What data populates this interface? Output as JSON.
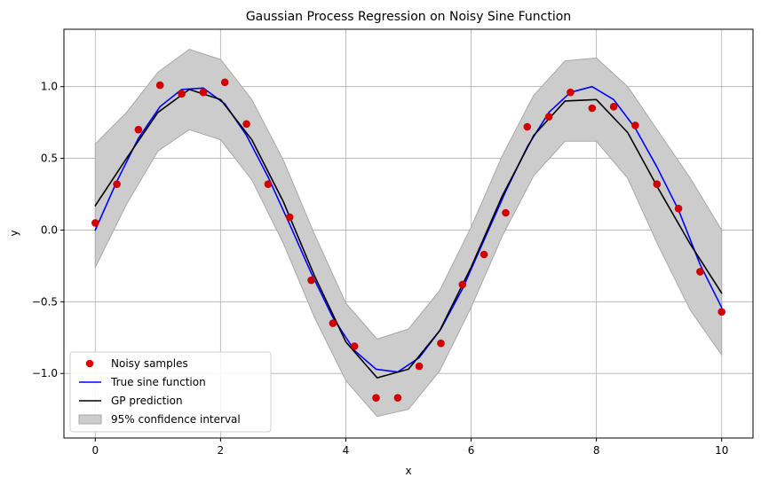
{
  "chart_data": {
    "type": "line",
    "title": "Gaussian Process Regression on Noisy Sine Function",
    "xlabel": "x",
    "ylabel": "y",
    "xlim": [
      -0.5,
      10.5
    ],
    "ylim": [
      -1.45,
      1.4
    ],
    "xticks": [
      0,
      2,
      4,
      6,
      8,
      10
    ],
    "xtick_labels": [
      "0",
      "2",
      "4",
      "6",
      "8",
      "10"
    ],
    "yticks": [
      -1.0,
      -0.5,
      0.0,
      0.5,
      1.0
    ],
    "ytick_labels": [
      "−1.0",
      "−0.5",
      "0.0",
      "0.5",
      "1.0"
    ],
    "grid": true,
    "legend_position": "lower-left",
    "legend": [
      {
        "label": "Noisy samples",
        "kind": "scatter",
        "color": "#e00000"
      },
      {
        "label": "True sine function",
        "kind": "line",
        "color": "#0000ff"
      },
      {
        "label": "GP prediction",
        "kind": "line",
        "color": "#000000"
      },
      {
        "label": "95% confidence interval",
        "kind": "band",
        "color": "#c8c8c8"
      }
    ],
    "noisy_samples": {
      "x": [
        0.0,
        0.345,
        0.69,
        1.034,
        1.379,
        1.724,
        2.069,
        2.414,
        2.759,
        3.103,
        3.448,
        3.793,
        4.138,
        4.483,
        4.828,
        5.172,
        5.517,
        5.862,
        6.207,
        6.552,
        6.897,
        7.241,
        7.586,
        7.931,
        8.276,
        8.621,
        8.966,
        9.31,
        9.655,
        10.0
      ],
      "y": [
        0.05,
        0.32,
        0.7,
        1.01,
        0.95,
        0.96,
        1.03,
        0.74,
        0.32,
        0.09,
        -0.35,
        -0.65,
        -0.81,
        -1.17,
        -1.17,
        -0.95,
        -0.79,
        -0.38,
        -0.17,
        0.12,
        0.72,
        0.79,
        0.96,
        0.85,
        0.86,
        0.73,
        0.32,
        0.15,
        -0.29,
        -0.57
      ]
    },
    "true_sine": {
      "x": [
        0.0,
        0.345,
        0.69,
        1.034,
        1.379,
        1.724,
        2.069,
        2.414,
        2.759,
        3.103,
        3.448,
        3.793,
        4.138,
        4.483,
        4.828,
        5.172,
        5.517,
        5.862,
        6.207,
        6.552,
        6.897,
        7.241,
        7.586,
        7.931,
        8.276,
        8.621,
        8.966,
        9.31,
        9.655,
        10.0
      ],
      "y": [
        0.0,
        0.34,
        0.64,
        0.86,
        0.98,
        0.99,
        0.88,
        0.66,
        0.37,
        0.04,
        -0.3,
        -0.61,
        -0.84,
        -0.97,
        -0.99,
        -0.89,
        -0.69,
        -0.41,
        -0.07,
        0.27,
        0.58,
        0.82,
        0.96,
        1.0,
        0.91,
        0.71,
        0.44,
        0.14,
        -0.24,
        -0.54
      ]
    },
    "gp_prediction": {
      "x": [
        0.0,
        0.5,
        1.0,
        1.5,
        2.0,
        2.5,
        3.0,
        3.5,
        4.0,
        4.5,
        5.0,
        5.5,
        6.0,
        6.5,
        7.0,
        7.5,
        8.0,
        8.5,
        9.0,
        9.5,
        10.0
      ],
      "y": [
        0.17,
        0.5,
        0.82,
        0.98,
        0.91,
        0.63,
        0.2,
        -0.32,
        -0.78,
        -1.03,
        -0.97,
        -0.7,
        -0.26,
        0.24,
        0.66,
        0.9,
        0.91,
        0.68,
        0.28,
        -0.1,
        -0.44
      ]
    },
    "confidence_interval": {
      "x": [
        0.0,
        0.5,
        1.0,
        1.5,
        2.0,
        2.5,
        3.0,
        3.5,
        4.0,
        4.5,
        5.0,
        5.5,
        6.0,
        6.5,
        7.0,
        7.5,
        8.0,
        8.5,
        9.0,
        9.5,
        10.0
      ],
      "lower": [
        -0.26,
        0.18,
        0.55,
        0.7,
        0.63,
        0.35,
        -0.09,
        -0.61,
        -1.05,
        -1.3,
        -1.25,
        -0.98,
        -0.54,
        -0.04,
        0.38,
        0.62,
        0.62,
        0.36,
        -0.12,
        -0.56,
        -0.87
      ],
      "upper": [
        0.6,
        0.82,
        1.1,
        1.26,
        1.19,
        0.91,
        0.49,
        -0.03,
        -0.51,
        -0.76,
        -0.69,
        -0.42,
        0.02,
        0.52,
        0.94,
        1.18,
        1.2,
        1.0,
        0.68,
        0.36,
        0.0
      ]
    }
  }
}
